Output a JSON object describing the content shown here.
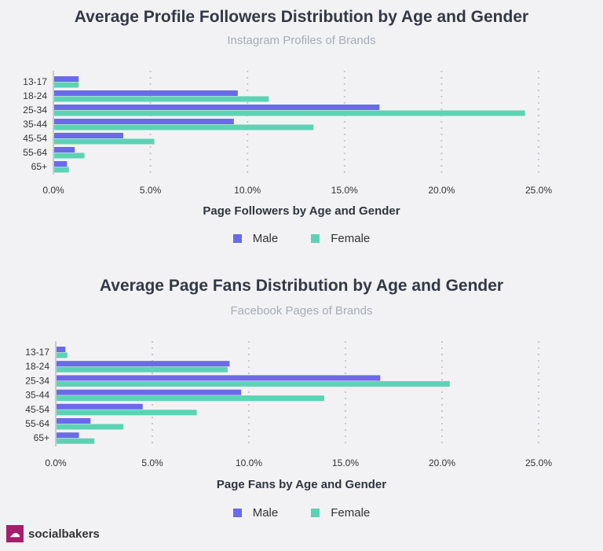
{
  "colors": {
    "male": "#6a6aea",
    "female": "#5dd3b3",
    "grid": "#c8cad0",
    "axis": "#c8cad0"
  },
  "chart_data": [
    {
      "type": "bar",
      "orientation": "horizontal",
      "title": "Average Profile Followers Distribution by Age and Gender",
      "subtitle": "Instagram Profiles of Brands",
      "xlabel": "Page Followers by Age and Gender",
      "categories": [
        "13-17",
        "18-24",
        "25-34",
        "35-44",
        "45-54",
        "55-64",
        "65+"
      ],
      "xlim": [
        0,
        25
      ],
      "xticks": [
        "0.0%",
        "5.0%",
        "10.0%",
        "15.0%",
        "20.0%",
        "25.0%"
      ],
      "grid": true,
      "legend": "bottom",
      "series": [
        {
          "name": "Male",
          "values": [
            1.3,
            9.5,
            16.8,
            9.3,
            3.6,
            1.1,
            0.7
          ]
        },
        {
          "name": "Female",
          "values": [
            1.3,
            11.1,
            24.3,
            13.4,
            5.2,
            1.6,
            0.8
          ]
        }
      ]
    },
    {
      "type": "bar",
      "orientation": "horizontal",
      "title": "Average Page Fans Distribution by Age and Gender",
      "subtitle": "Facebook Pages of Brands",
      "xlabel": "Page Fans by Age and Gender",
      "categories": [
        "13-17",
        "18-24",
        "25-34",
        "35-44",
        "45-54",
        "55-64",
        "65+"
      ],
      "xlim": [
        0,
        25
      ],
      "xticks": [
        "0.0%",
        "5.0%",
        "10.0%",
        "15.0%",
        "20.0%",
        "25.0%"
      ],
      "grid": true,
      "legend": "bottom",
      "series": [
        {
          "name": "Male",
          "values": [
            0.5,
            9.0,
            16.8,
            9.6,
            4.5,
            1.8,
            1.2
          ]
        },
        {
          "name": "Female",
          "values": [
            0.6,
            8.9,
            20.4,
            13.9,
            7.3,
            3.5,
            2.0
          ]
        }
      ]
    }
  ],
  "brand": {
    "name": "socialbakers"
  }
}
